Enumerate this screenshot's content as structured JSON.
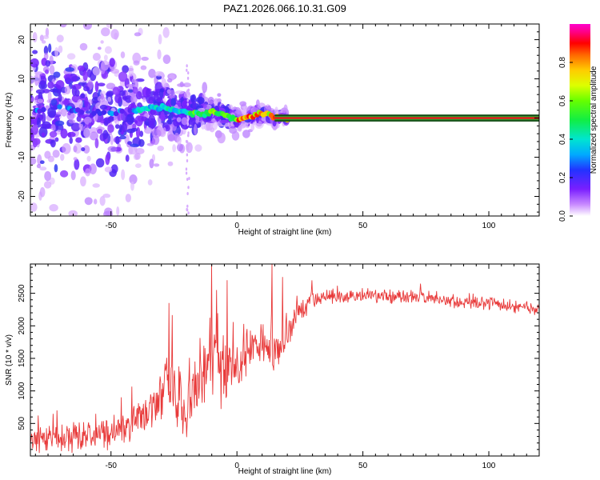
{
  "title": "PAZ1.2026.066.10.31.G09",
  "colors": {
    "snr_line": "#e83a3a",
    "median_band": "#2a9a2a",
    "median_core": "#e61e1e",
    "frame": "#000000"
  },
  "chart_data": [
    {
      "type": "heatmap",
      "title": "PAZ1.2026.066.10.31.G09",
      "xlabel": "Height of straight line (km)",
      "ylabel": "Frequency (Hz)",
      "xlim": [
        -82,
        120
      ],
      "ylim": [
        -25,
        24
      ],
      "x_ticks": [
        -50,
        0,
        50,
        100
      ],
      "y_ticks": [
        -20,
        -10,
        0,
        10,
        20
      ],
      "colorbar": {
        "label": "Normalized spectral amplitude",
        "range": [
          0,
          1
        ],
        "ticks": [
          "0.0",
          "0.2",
          "0.4",
          "0.6",
          "0.8"
        ],
        "tick_values": [
          0,
          0.2,
          0.4,
          0.6,
          0.8
        ]
      },
      "ridge": {
        "description": "frequency of spectral peak vs height",
        "x": [
          -80,
          -70,
          -60,
          -50,
          -40,
          -35,
          -30,
          -25,
          -20,
          -15,
          -10,
          -5,
          0,
          5,
          10,
          15,
          20,
          30,
          60,
          120
        ],
        "y": [
          2.0,
          3.0,
          1.0,
          1.5,
          2.0,
          2.5,
          2.8,
          2.0,
          1.5,
          1.0,
          1.5,
          0.8,
          -0.5,
          0.3,
          1.2,
          0.3,
          0.0,
          0.0,
          0.0,
          0.0
        ]
      },
      "spread_envelope": {
        "description": "approximate half-width of scattered spectral energy (Hz)",
        "x": [
          -80,
          -60,
          -50,
          -40,
          -30,
          -20,
          -15,
          -5,
          0,
          20,
          120
        ],
        "halfwidth": [
          12,
          13,
          12,
          9,
          6,
          4,
          3,
          2,
          1.5,
          0.8,
          0.8
        ]
      }
    },
    {
      "type": "line",
      "xlabel": "Height of straight line (km)",
      "ylabel": "SNR (10 * v/v)",
      "xlim": [
        -82,
        120
      ],
      "ylim": [
        0,
        2950
      ],
      "x_ticks": [
        -50,
        0,
        50,
        100
      ],
      "y_ticks": [
        500,
        1000,
        1500,
        2000,
        2500
      ],
      "series": [
        {
          "name": "SNR",
          "x": [
            -82,
            -70,
            -60,
            -50,
            -45,
            -40,
            -35,
            -30,
            -28,
            -25,
            -20,
            -15,
            -12,
            -10,
            -8,
            -5,
            -3,
            0,
            3,
            5,
            8,
            10,
            13,
            15,
            18,
            20,
            25,
            30,
            35,
            40,
            50,
            60,
            70,
            80,
            90,
            100,
            110,
            120
          ],
          "y": [
            300,
            280,
            300,
            320,
            380,
            500,
            700,
            900,
            1400,
            900,
            900,
            1200,
            1300,
            1500,
            1400,
            1200,
            1350,
            1400,
            1500,
            1700,
            1600,
            1700,
            1700,
            1600,
            1700,
            1900,
            2250,
            2400,
            2450,
            2450,
            2450,
            2450,
            2450,
            2400,
            2350,
            2350,
            2300,
            2250
          ],
          "noise_amplitude": [
            180,
            170,
            170,
            180,
            200,
            250,
            300,
            350,
            400,
            450,
            500,
            550,
            550,
            550,
            500,
            450,
            400,
            350,
            300,
            300,
            300,
            300,
            280,
            260,
            240,
            200,
            150,
            120,
            100,
            90,
            80,
            80,
            80,
            80,
            80,
            80,
            80,
            80
          ],
          "spikes": [
            {
              "x": -27,
              "y": 2350
            },
            {
              "x": -10,
              "y": 2950
            },
            {
              "x": -8,
              "y": 2550
            },
            {
              "x": -4,
              "y": 2700
            },
            {
              "x": 14,
              "y": 2950
            },
            {
              "x": 18,
              "y": 2750
            }
          ]
        }
      ]
    }
  ]
}
